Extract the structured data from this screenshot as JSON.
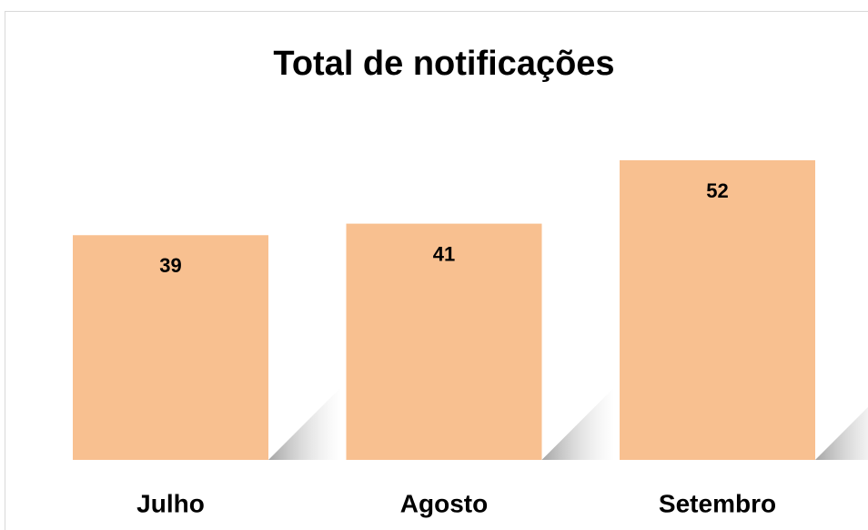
{
  "chart_data": {
    "type": "bar",
    "title": "Total de notificações",
    "categories": [
      "Julho",
      "Agosto",
      "Setembro"
    ],
    "values": [
      39,
      41,
      52
    ],
    "color": "#f8c090"
  }
}
